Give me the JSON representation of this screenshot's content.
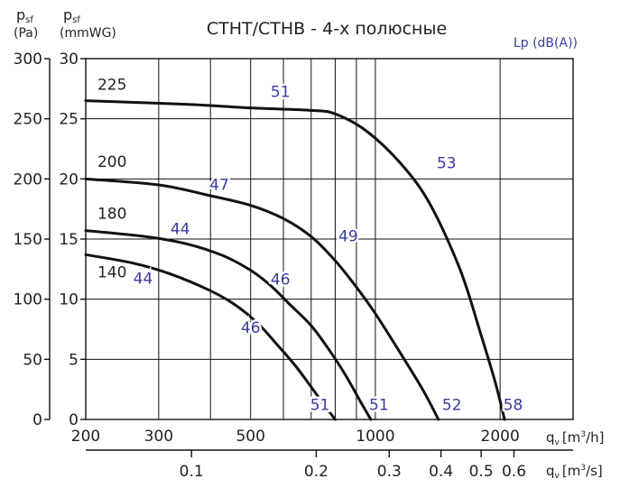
{
  "chart_data": {
    "type": "line",
    "title": "CTHT/CTHB - 4-х полюсные",
    "y_left_label": {
      "symbol": "p",
      "sub": "sf",
      "unit": "(Pa)"
    },
    "y_right_label": {
      "symbol": "p",
      "sub": "sf",
      "unit": "(mmWG)"
    },
    "lp_label": "Lp (dB(A))",
    "x_label": {
      "symbol": "q",
      "sub": "v",
      "unit": "[m",
      "sup": "3",
      "unit_end": "/h]"
    },
    "x2_label": {
      "symbol": "q",
      "sub": "v",
      "unit": "[m",
      "sup": "3",
      "unit_end": "/s]"
    },
    "x_scale": "log",
    "x_range": [
      200,
      3000
    ],
    "y_pa_range": [
      0,
      300
    ],
    "y_mm_range": [
      0,
      30
    ],
    "x_ticks": [
      200,
      300,
      500,
      1000,
      2000
    ],
    "x_tick_labels": [
      "200",
      "300",
      "500",
      "1000",
      "2000"
    ],
    "x_grid": [
      200,
      300,
      400,
      500,
      600,
      700,
      800,
      900,
      1000,
      2000,
      3000
    ],
    "x2_ticks": [
      0.1,
      0.2,
      0.3,
      0.4,
      0.5,
      0.6
    ],
    "x2_tick_labels": [
      "0.1",
      "0.2",
      "0.3",
      "0.4",
      "0.5",
      "0.6"
    ],
    "y_pa_ticks": [
      0,
      50,
      100,
      150,
      200,
      250,
      300
    ],
    "y_pa_tick_labels": [
      "0",
      "50",
      "100",
      "150",
      "200",
      "250",
      "300"
    ],
    "y_mm_ticks": [
      0,
      5,
      10,
      15,
      20,
      25,
      30
    ],
    "y_mm_tick_labels": [
      "0",
      "5",
      "10",
      "15",
      "20",
      "25",
      "30"
    ],
    "grid": true,
    "series": [
      {
        "name": "225",
        "x": [
          200,
          350,
          500,
          700,
          800,
          950,
          1150,
          1350,
          1600,
          1800,
          1950,
          2050
        ],
        "y": [
          265,
          262,
          259,
          257,
          254,
          240,
          213,
          180,
          125,
          70,
          30,
          0
        ]
      },
      {
        "name": "200",
        "x": [
          200,
          300,
          400,
          500,
          600,
          700,
          800,
          900,
          1000,
          1150,
          1300,
          1420
        ],
        "y": [
          200,
          195,
          186,
          178,
          167,
          152,
          132,
          110,
          88,
          55,
          25,
          0
        ]
      },
      {
        "name": "180",
        "x": [
          200,
          280,
          350,
          430,
          500,
          560,
          620,
          700,
          780,
          850,
          920,
          975
        ],
        "y": [
          157,
          152,
          146,
          136,
          124,
          111,
          96,
          78,
          56,
          36,
          15,
          0
        ]
      },
      {
        "name": "140",
        "x": [
          200,
          260,
          320,
          400,
          460,
          520,
          580,
          640,
          700,
          760,
          800
        ],
        "y": [
          137,
          130,
          121,
          107,
          95,
          80,
          62,
          45,
          27,
          10,
          0
        ]
      }
    ],
    "series_labels": [
      {
        "text": "225",
        "x": 203,
        "y": 274
      },
      {
        "text": "200",
        "x": 203,
        "y": 210
      },
      {
        "text": "180",
        "x": 203,
        "y": 167
      },
      {
        "text": "140",
        "x": 203,
        "y": 118
      }
    ],
    "lp_annotations": [
      {
        "text": "51",
        "x": 590,
        "y": 268
      },
      {
        "text": "47",
        "x": 420,
        "y": 191
      },
      {
        "text": "44",
        "x": 338,
        "y": 154
      },
      {
        "text": "44",
        "x": 275,
        "y": 113
      },
      {
        "text": "46",
        "x": 590,
        "y": 112
      },
      {
        "text": "46",
        "x": 500,
        "y": 72
      },
      {
        "text": "49",
        "x": 860,
        "y": 148
      },
      {
        "text": "53",
        "x": 1485,
        "y": 209
      },
      {
        "text": "51",
        "x": 735,
        "y": 8
      },
      {
        "text": "51",
        "x": 1020,
        "y": 8
      },
      {
        "text": "52",
        "x": 1530,
        "y": 8
      },
      {
        "text": "58",
        "x": 2150,
        "y": 8
      }
    ]
  }
}
